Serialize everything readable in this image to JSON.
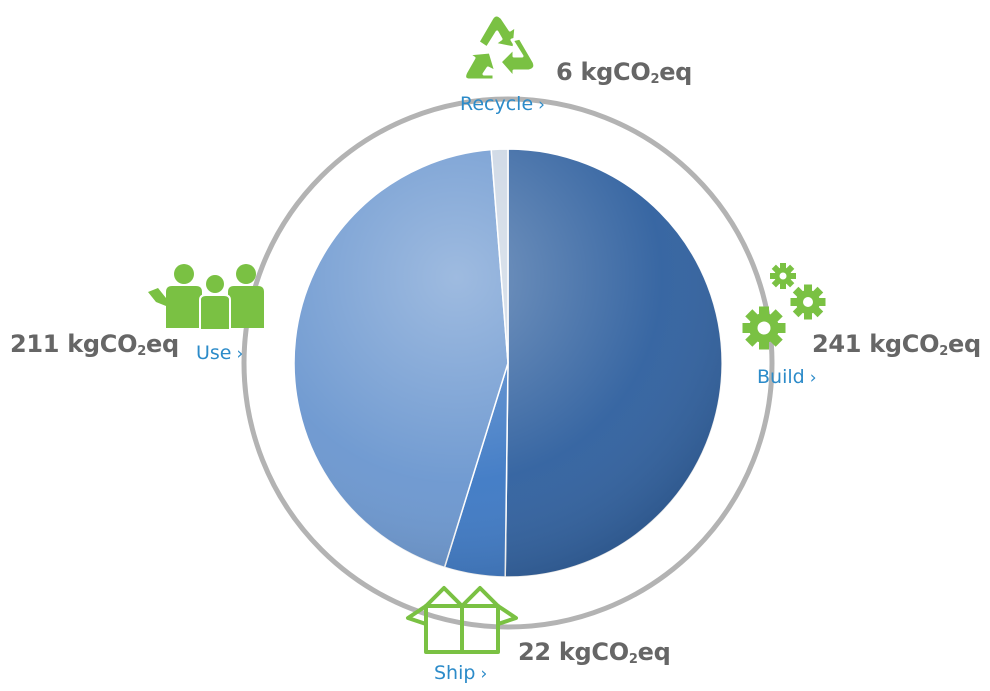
{
  "colors": {
    "accent_green": "#7ac143",
    "link_blue": "#2c8bc9",
    "value_gray": "#666666",
    "ring_gray": "#b3b3b3"
  },
  "labels": {
    "recycle": {
      "text": "Recycle",
      "chevron": "›",
      "unit_pre": "kgCO",
      "unit_sub": "2",
      "unit_post": "eq",
      "icon": "recycle-icon"
    },
    "build": {
      "text": "Build",
      "chevron": "›",
      "unit_pre": "kgCO",
      "unit_sub": "2",
      "unit_post": "eq",
      "icon": "gears-icon"
    },
    "ship": {
      "text": "Ship",
      "chevron": "›",
      "unit_pre": "kgCO",
      "unit_sub": "2",
      "unit_post": "eq",
      "icon": "box-icon"
    },
    "use": {
      "text": "Use",
      "chevron": "›",
      "unit_pre": "kgCO",
      "unit_sub": "2",
      "unit_post": "eq",
      "icon": "people-icon"
    }
  },
  "chart_data": {
    "type": "pie",
    "unit": "kgCO2eq",
    "slices": [
      {
        "label": "Build",
        "value": 241,
        "color": "#2e5f9e"
      },
      {
        "label": "Ship",
        "value": 22,
        "color": "#3c78c4"
      },
      {
        "label": "Use",
        "value": 211,
        "color": "#6a96cf"
      },
      {
        "label": "Recycle",
        "value": 6,
        "color": "#c9d4e2"
      }
    ],
    "start": "12 o'clock, clockwise",
    "legend": "none"
  }
}
